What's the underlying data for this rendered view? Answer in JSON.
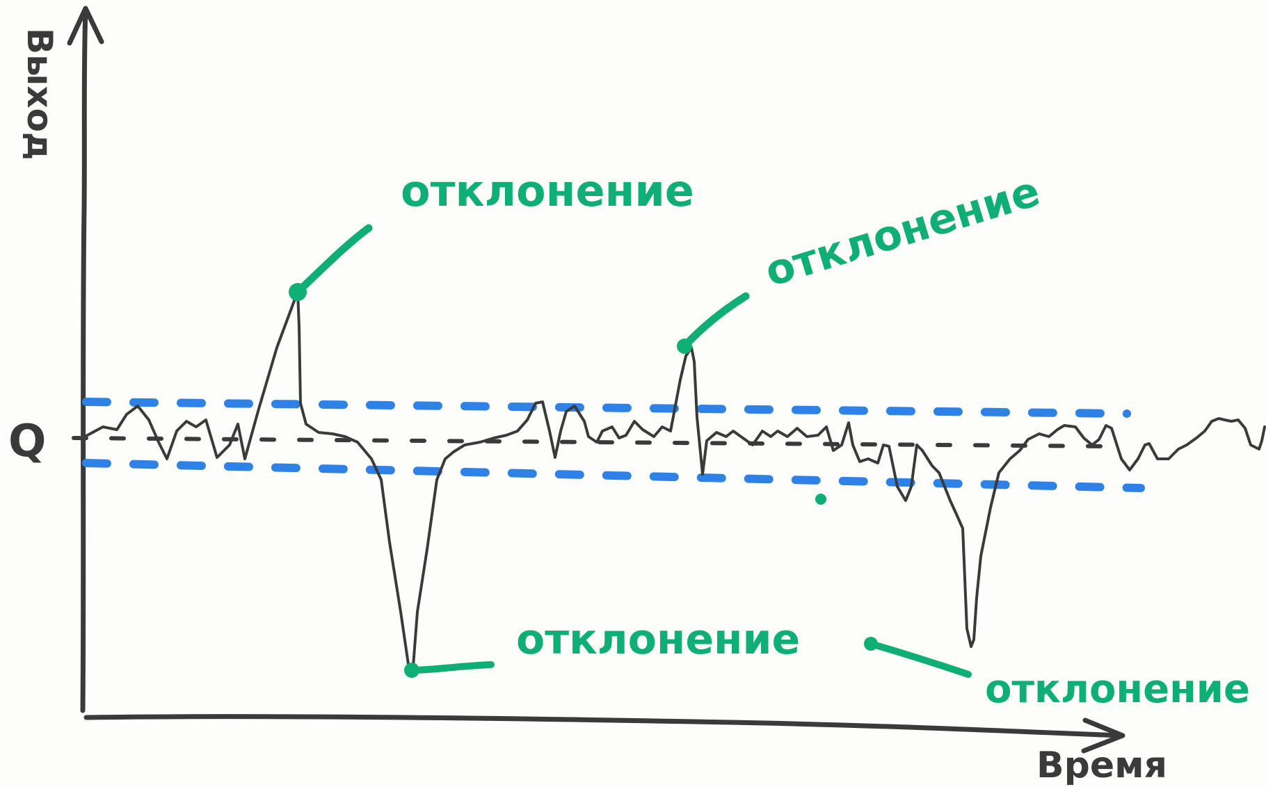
{
  "diagram": {
    "y_axis_label": "Выход",
    "x_axis_label": "Время",
    "baseline_label": "Q",
    "annotations": [
      {
        "id": "peak-1",
        "label": "отклонение"
      },
      {
        "id": "peak-2",
        "label": "отклонение"
      },
      {
        "id": "dip-1",
        "label": "отклонение"
      },
      {
        "id": "dip-2",
        "label": "отклонение"
      }
    ],
    "colors": {
      "ink": "#3a3a3a",
      "accent": "#0fae74",
      "band": "#2e82e6"
    }
  }
}
